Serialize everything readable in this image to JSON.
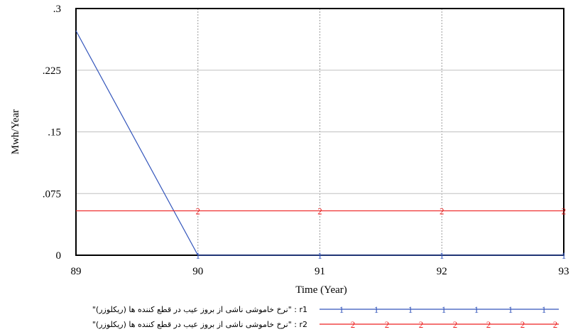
{
  "chart_data": {
    "type": "line",
    "xlabel": "Time (Year)",
    "ylabel": "Mwh/Year",
    "xlim": [
      89,
      93
    ],
    "ylim": [
      0,
      0.3
    ],
    "x_ticks": [
      89,
      90,
      91,
      92,
      93
    ],
    "x_tick_labels": [
      "89",
      "90",
      "91",
      "92",
      "93"
    ],
    "y_ticks": [
      0,
      0.075,
      0.15,
      0.225,
      0.3
    ],
    "y_tick_labels": [
      "0",
      ".075",
      ".15",
      ".225",
      ".3"
    ],
    "grid": true,
    "legend_position": "bottom",
    "series": [
      {
        "name": "\"نرخ خاموشی ناشی از بروز عیب در قطع کننده ها (ریکلوزر)\" : r1",
        "marker": "1",
        "color": "#3355bb",
        "x": [
          89,
          90,
          93
        ],
        "y": [
          0.273,
          0,
          0
        ]
      },
      {
        "name": "\"نرخ خاموشی ناشی از بروز عیب در قطع کننده ها (ریکلوزر)\" : r2",
        "marker": "2",
        "color": "#ee2222",
        "x": [
          89,
          93
        ],
        "y": [
          0.054,
          0.054
        ]
      }
    ]
  }
}
